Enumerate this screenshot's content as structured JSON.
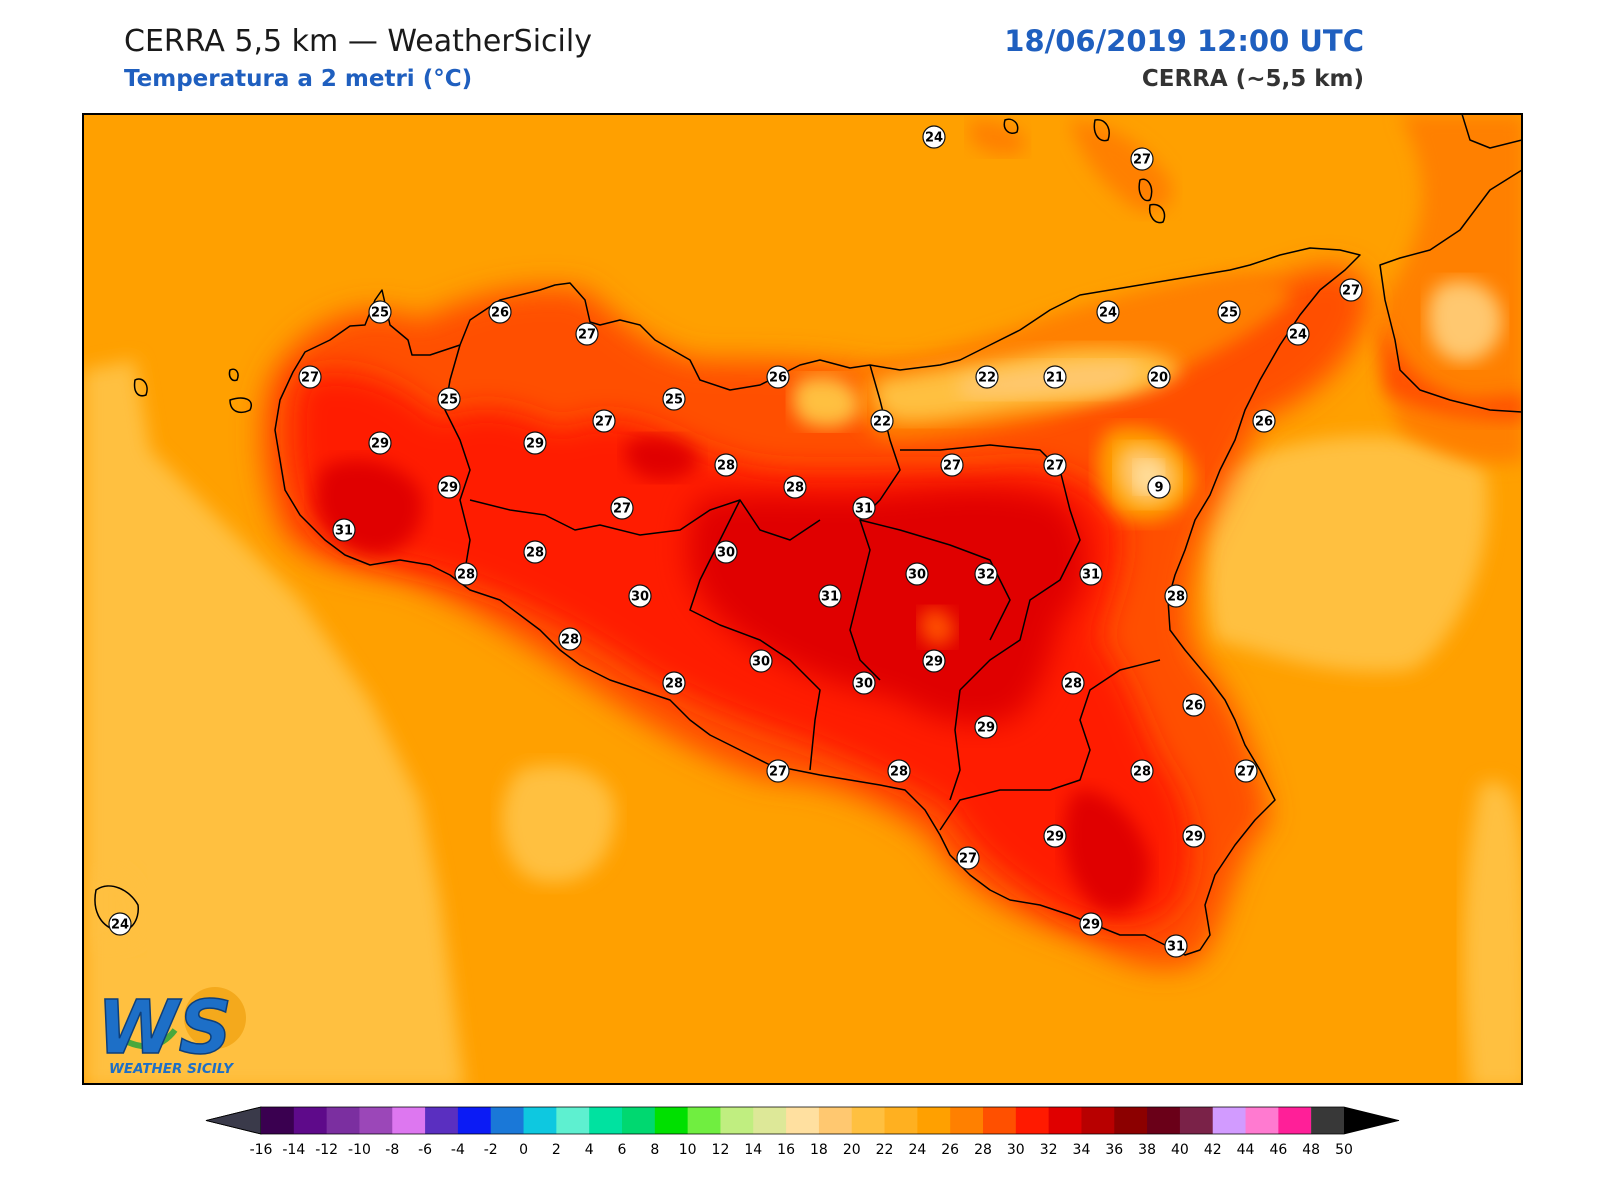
{
  "header": {
    "title": "CERRA 5,5 km — WeatherSicily",
    "subtitle": "Temperatura a 2 metri (°C)",
    "datetime": "18/06/2019 12:00 UTC",
    "model": "CERRA (~5,5 km)"
  },
  "stations": [
    {
      "value": "24"
    },
    {
      "value": "27"
    },
    {
      "value": "25"
    },
    {
      "value": "26"
    },
    {
      "value": "27"
    },
    {
      "value": "24"
    },
    {
      "value": "25"
    },
    {
      "value": "27"
    },
    {
      "value": "24"
    },
    {
      "value": "27"
    },
    {
      "value": "25"
    },
    {
      "value": "25"
    },
    {
      "value": "27"
    },
    {
      "value": "26"
    },
    {
      "value": "22"
    },
    {
      "value": "21"
    },
    {
      "value": "20"
    },
    {
      "value": "22"
    },
    {
      "value": "26"
    },
    {
      "value": "29"
    },
    {
      "value": "29"
    },
    {
      "value": "28"
    },
    {
      "value": "28"
    },
    {
      "value": "27"
    },
    {
      "value": "27"
    },
    {
      "value": "9"
    },
    {
      "value": "29"
    },
    {
      "value": "31"
    },
    {
      "value": "27"
    },
    {
      "value": "31"
    },
    {
      "value": "28"
    },
    {
      "value": "30"
    },
    {
      "value": "28"
    },
    {
      "value": "30"
    },
    {
      "value": "31"
    },
    {
      "value": "30"
    },
    {
      "value": "32"
    },
    {
      "value": "31"
    },
    {
      "value": "28"
    },
    {
      "value": "28"
    },
    {
      "value": "30"
    },
    {
      "value": "29"
    },
    {
      "value": "28"
    },
    {
      "value": "28"
    },
    {
      "value": "30"
    },
    {
      "value": "26"
    },
    {
      "value": "29"
    },
    {
      "value": "27"
    },
    {
      "value": "28"
    },
    {
      "value": "28"
    },
    {
      "value": "27"
    },
    {
      "value": "29"
    },
    {
      "value": "29"
    },
    {
      "value": "27"
    },
    {
      "value": "29"
    },
    {
      "value": "31"
    },
    {
      "value": "24"
    }
  ],
  "colorbar": {
    "ticks": [
      "-16",
      "-14",
      "-12",
      "-10",
      "-8",
      "-6",
      "-4",
      "-2",
      "0",
      "2",
      "4",
      "6",
      "8",
      "10",
      "12",
      "14",
      "16",
      "18",
      "20",
      "22",
      "24",
      "26",
      "28",
      "30",
      "32",
      "34",
      "36",
      "38",
      "40",
      "42",
      "44",
      "46",
      "48",
      "50"
    ],
    "colors": [
      "#3a0050",
      "#5e0a8a",
      "#7b2fa0",
      "#9b47b8",
      "#dd77f0",
      "#5a2fc0",
      "#0b1bf5",
      "#1a78d8",
      "#0ec8e0",
      "#5ef0d0",
      "#00e2a0",
      "#00d870",
      "#00e000",
      "#70ee40",
      "#c0ee80",
      "#dde898",
      "#ffe0a0",
      "#ffc870",
      "#ffc040",
      "#ffb020",
      "#ffa000",
      "#ff8000",
      "#ff5000",
      "#ff1a00",
      "#e00000",
      "#b80000",
      "#8c0000",
      "#6a0018",
      "#7a2248",
      "#d29bff",
      "#ff7ad0",
      "#ff1f98",
      "#7d7d7d",
      "#383838"
    ],
    "under_color": "#3a3a4a",
    "over_color": "#000000"
  },
  "logo": {
    "letters": "WS",
    "caption": "WEATHER SICILY"
  }
}
